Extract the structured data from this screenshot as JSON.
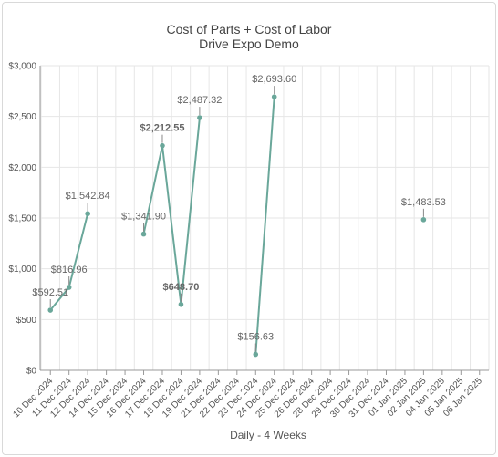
{
  "chart_data": {
    "type": "line",
    "title": "Cost of Parts + Cost of Labor",
    "subtitle": "Drive Expo Demo",
    "xlabel": "Daily - 4 Weeks",
    "ylabel": "",
    "ylim": [
      0,
      3000
    ],
    "yticks": [
      "$0",
      "$500",
      "$1,000",
      "$1,500",
      "$2,000",
      "$2,500",
      "$3,000"
    ],
    "categories": [
      "10 Dec 2024",
      "11 Dec 2024",
      "12 Dec 2024",
      "14 Dec 2024",
      "15 Dec 2024",
      "16 Dec 2024",
      "17 Dec 2024",
      "18 Dec 2024",
      "19 Dec 2024",
      "21 Dec 2024",
      "22 Dec 2024",
      "23 Dec 2024",
      "24 Dec 2024",
      "25 Dec 2024",
      "26 Dec 2024",
      "28 Dec 2024",
      "29 Dec 2024",
      "30 Dec 2024",
      "31 Dec 2024",
      "01 Jan 2025",
      "02 Jan 2025",
      "04 Jan 2025",
      "05 Jan 2025",
      "06 Jan 2025"
    ],
    "series": [
      {
        "name": "",
        "values": [
          592.51,
          816.96,
          1542.84,
          null,
          null,
          1341.9,
          2212.55,
          648.7,
          2487.32,
          null,
          null,
          156.63,
          2693.6,
          null,
          null,
          null,
          null,
          null,
          null,
          null,
          1483.53,
          null,
          null,
          null
        ],
        "labels": [
          "$592.51",
          "$816.96",
          "$1,542.84",
          null,
          null,
          "$1,341.90",
          "$2,212.55",
          "$648.70",
          "$2,487.32",
          null,
          null,
          "$156.63",
          "$2,693.60",
          null,
          null,
          null,
          null,
          null,
          null,
          null,
          "$1,483.53",
          null,
          null,
          null
        ]
      }
    ],
    "grid": true,
    "color": "#6aa79a"
  }
}
